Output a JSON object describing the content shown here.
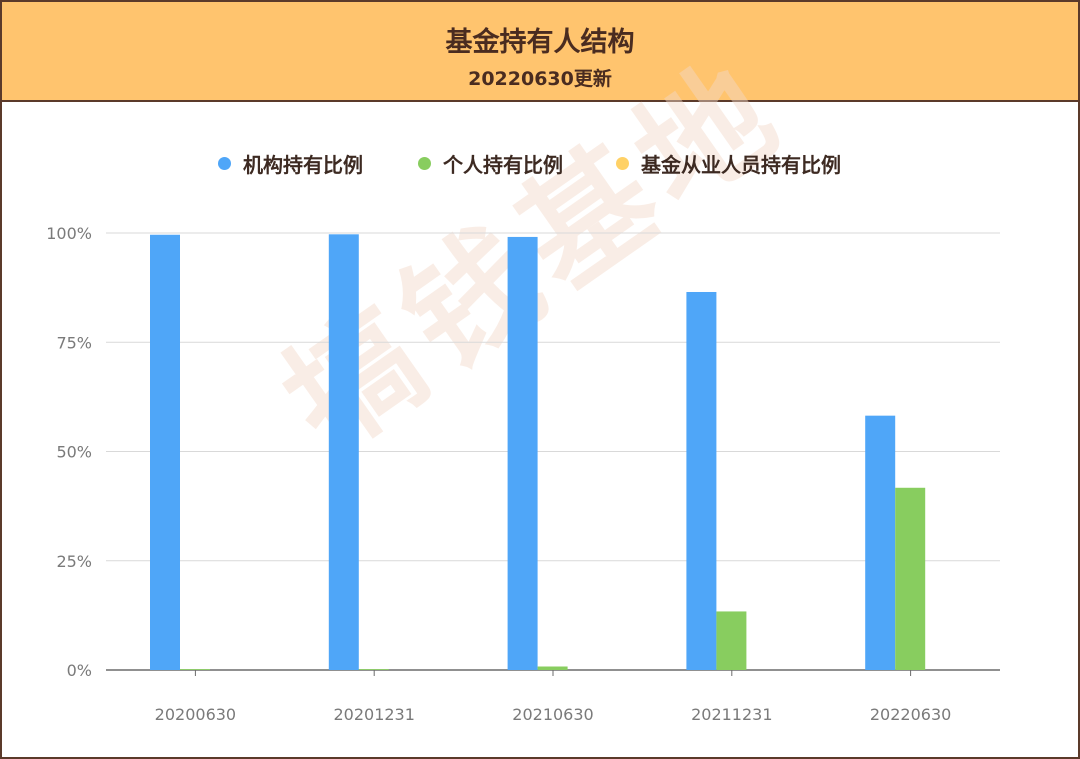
{
  "header": {
    "title": "基金持有人结构",
    "subtitle": "20220630更新"
  },
  "watermark": "搞钱基地",
  "colors": {
    "header_bg": "#ffc46e",
    "border": "#5b3a2a",
    "institutional": "#4fa6f8",
    "individual": "#88cd5f",
    "employee": "#ffd166"
  },
  "chart_data": {
    "type": "bar",
    "categories": [
      "20200630",
      "20201231",
      "20210630",
      "20211231",
      "20220630"
    ],
    "series": [
      {
        "name": "机构持有比例",
        "color": "#4fa6f8",
        "values": [
          99.6,
          99.7,
          99.1,
          86.5,
          58.2
        ]
      },
      {
        "name": "个人持有比例",
        "color": "#88cd5f",
        "values": [
          0.2,
          0.2,
          0.8,
          13.4,
          41.7
        ]
      },
      {
        "name": "基金从业人员持有比例",
        "color": "#ffd166",
        "values": [
          0,
          0,
          0,
          0,
          0
        ]
      }
    ],
    "ylim": [
      0,
      100
    ],
    "yticks": [
      "0%",
      "25%",
      "50%",
      "75%",
      "100%"
    ],
    "grid": true,
    "legend": "top-center"
  }
}
